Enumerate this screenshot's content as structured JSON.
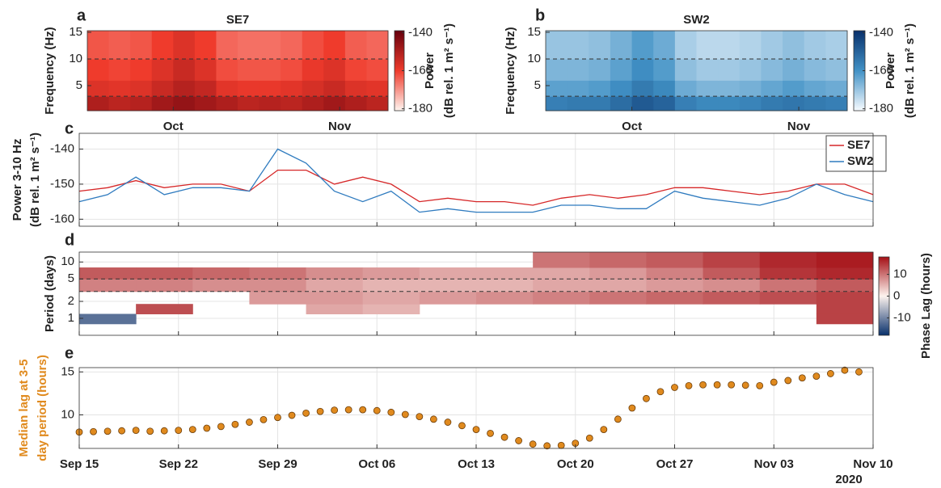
{
  "chart_data": [
    {
      "type": "heatmap",
      "panel_label": "a",
      "title": "SE7",
      "ylabel": "Frequency (Hz)",
      "colorbar_label": [
        "Power",
        "(dB rel. 1 m² s⁻¹)"
      ],
      "xlim": [
        "2020-09-15",
        "2020-11-10"
      ],
      "xticks": [
        {
          "value": "2020-10-01",
          "label": "Oct"
        },
        {
          "value": "2020-11-01",
          "label": "Nov"
        }
      ],
      "ylim": [
        0.3,
        15.3
      ],
      "yticks": [
        5,
        10,
        15
      ],
      "reference_lines": [
        3,
        10
      ],
      "clim": [
        -181,
        -139
      ],
      "cticks": [
        -140,
        -160,
        -180
      ],
      "colormap": [
        "#fff5f0",
        "#ef3b2c",
        "#67000d"
      ],
      "x_edges": [
        "2020-09-15",
        "2020-09-19",
        "2020-09-23",
        "2020-09-27",
        "2020-10-01",
        "2020-10-05",
        "2020-10-09",
        "2020-10-13",
        "2020-10-17",
        "2020-10-21",
        "2020-10-25",
        "2020-10-29",
        "2020-11-02",
        "2020-11-06",
        "2020-11-10"
      ],
      "y_edges": [
        0.3,
        3,
        6,
        10,
        15.3
      ],
      "z": [
        [
          -150,
          -152,
          -151,
          -148,
          -146,
          -148,
          -150,
          -152,
          -151,
          -152,
          -150,
          -148,
          -150,
          -152
        ],
        [
          -157,
          -158,
          -157,
          -154,
          -151,
          -153,
          -158,
          -159,
          -159,
          -158,
          -156,
          -154,
          -157,
          -158
        ],
        [
          -160,
          -161,
          -160,
          -157,
          -154,
          -157,
          -162,
          -163,
          -163,
          -162,
          -159,
          -157,
          -161,
          -162
        ],
        [
          -163,
          -164,
          -163,
          -160,
          -157,
          -160,
          -165,
          -166,
          -166,
          -165,
          -162,
          -160,
          -164,
          -165
        ]
      ]
    },
    {
      "type": "heatmap",
      "panel_label": "b",
      "title": "SW2",
      "ylabel": "Frequency (Hz)",
      "colorbar_label": [
        "Power",
        "(dB rel. 1 m² s⁻¹)"
      ],
      "xlim": [
        "2020-09-15",
        "2020-11-10"
      ],
      "xticks": [
        {
          "value": "2020-10-01",
          "label": "Oct"
        },
        {
          "value": "2020-11-01",
          "label": "Nov"
        }
      ],
      "ylim": [
        0.3,
        15.3
      ],
      "yticks": [
        5,
        10,
        15
      ],
      "reference_lines": [
        3,
        10
      ],
      "clim": [
        -181,
        -139
      ],
      "cticks": [
        -140,
        -160,
        -180
      ],
      "colormap": [
        "#f7fbff",
        "#4292c6",
        "#08306b"
      ],
      "x_edges": [
        "2020-09-15",
        "2020-09-19",
        "2020-09-23",
        "2020-09-27",
        "2020-10-01",
        "2020-10-05",
        "2020-10-09",
        "2020-10-13",
        "2020-10-17",
        "2020-10-21",
        "2020-10-25",
        "2020-10-29",
        "2020-11-02",
        "2020-11-06",
        "2020-11-10"
      ],
      "y_edges": [
        0.3,
        3,
        6,
        10,
        15.3
      ],
      "z": [
        [
          -156,
          -155,
          -155,
          -152,
          -148,
          -150,
          -156,
          -158,
          -158,
          -157,
          -155,
          -154,
          -155,
          -156
        ],
        [
          -163,
          -163,
          -162,
          -159,
          -155,
          -158,
          -165,
          -167,
          -167,
          -166,
          -164,
          -162,
          -164,
          -165
        ],
        [
          -167,
          -167,
          -166,
          -163,
          -159,
          -162,
          -169,
          -171,
          -171,
          -170,
          -168,
          -166,
          -168,
          -169
        ],
        [
          -170,
          -170,
          -169,
          -166,
          -162,
          -165,
          -172,
          -174,
          -174,
          -173,
          -171,
          -169,
          -171,
          -172
        ]
      ]
    },
    {
      "type": "line",
      "panel_label": "c",
      "ylabel": [
        "Power 3-10 Hz",
        "(dB rel. 1 m² s⁻¹)"
      ],
      "xlim": [
        "2020-09-15",
        "2020-11-10"
      ],
      "ylim": [
        -162,
        -135.5
      ],
      "yticks": [
        -140,
        -150,
        -160
      ],
      "grid": true,
      "legend": "upper right",
      "x": [
        "2020-09-15",
        "2020-09-17",
        "2020-09-19",
        "2020-09-21",
        "2020-09-23",
        "2020-09-25",
        "2020-09-27",
        "2020-09-29",
        "2020-10-01",
        "2020-10-03",
        "2020-10-05",
        "2020-10-07",
        "2020-10-09",
        "2020-10-11",
        "2020-10-13",
        "2020-10-15",
        "2020-10-17",
        "2020-10-19",
        "2020-10-21",
        "2020-10-23",
        "2020-10-25",
        "2020-10-27",
        "2020-10-29",
        "2020-10-31",
        "2020-11-02",
        "2020-11-04",
        "2020-11-06",
        "2020-11-08",
        "2020-11-10"
      ],
      "series": [
        {
          "name": "SE7",
          "color": "#d62728",
          "values": [
            -152,
            -151,
            -149,
            -151,
            -150,
            -150,
            -152,
            -146,
            -146,
            -150,
            -148,
            -150,
            -155,
            -154,
            -155,
            -155,
            -156,
            -154,
            -153,
            -154,
            -153,
            -151,
            -151,
            -152,
            -153,
            -152,
            -150,
            -150,
            -153
          ]
        },
        {
          "name": "SW2",
          "color": "#2f7bbf",
          "values": [
            -155,
            -153,
            -148,
            -153,
            -151,
            -151,
            -152,
            -140,
            -144,
            -152,
            -155,
            -152,
            -158,
            -157,
            -158,
            -158,
            -158,
            -156,
            -156,
            -157,
            -157,
            -152,
            -154,
            -155,
            -156,
            -154,
            -150,
            -153,
            -155
          ]
        }
      ]
    },
    {
      "type": "heatmap",
      "panel_label": "d",
      "ylabel": "Period (days)",
      "colorbar_label": [
        "Phase Lag (hours)"
      ],
      "yscale": "log",
      "grid": true,
      "xlim": [
        "2020-09-15",
        "2020-11-10"
      ],
      "ylim": [
        0.5,
        15
      ],
      "yticks": [
        1,
        2,
        5,
        10
      ],
      "reference_lines": [
        3,
        5
      ],
      "clim": [
        -18,
        18
      ],
      "cticks": [
        10,
        0,
        -10
      ],
      "colormap": [
        "#08306b",
        "#fdf3ee",
        "#a50f15"
      ],
      "x_edges": [
        "2020-09-15",
        "2020-09-19",
        "2020-09-23",
        "2020-09-27",
        "2020-10-01",
        "2020-10-05",
        "2020-10-09",
        "2020-10-13",
        "2020-10-17",
        "2020-10-21",
        "2020-10-25",
        "2020-10-29",
        "2020-11-02",
        "2020-11-06",
        "2020-11-10"
      ],
      "y_edges": [
        0.5,
        0.8,
        1.2,
        1.8,
        3,
        5,
        8,
        15
      ],
      "z": [
        [
          null,
          null,
          null,
          null,
          null,
          null,
          null,
          null,
          null,
          null,
          null,
          null,
          null,
          null
        ],
        [
          -12,
          null,
          null,
          null,
          null,
          null,
          null,
          null,
          null,
          null,
          null,
          null,
          null,
          14
        ],
        [
          null,
          13,
          null,
          null,
          6,
          5,
          null,
          null,
          null,
          null,
          null,
          null,
          null,
          14
        ],
        [
          null,
          null,
          null,
          7,
          7,
          6,
          7,
          8,
          9,
          10,
          11,
          12,
          13,
          14
        ],
        [
          9,
          9,
          8,
          8,
          6,
          5,
          5,
          5,
          6,
          6,
          7,
          8,
          10,
          12
        ],
        [
          12,
          12,
          11,
          10,
          8,
          7,
          6,
          6,
          6,
          7,
          9,
          12,
          15,
          16
        ],
        [
          null,
          null,
          null,
          null,
          null,
          null,
          null,
          null,
          10,
          11,
          12,
          14,
          16,
          17
        ]
      ]
    },
    {
      "type": "scatter",
      "panel_label": "e",
      "ylabel": [
        "Median lag at 3-5",
        "day period (hours)"
      ],
      "color": "#e08a1e",
      "year_label": "2020",
      "grid": true,
      "xlim": [
        "2020-09-15",
        "2020-11-10"
      ],
      "ylim": [
        6.1,
        15.5
      ],
      "yticks": [
        10,
        15
      ],
      "xticks": [
        {
          "value": "2020-09-15",
          "label": "Sep 15"
        },
        {
          "value": "2020-09-22",
          "label": "Sep 22"
        },
        {
          "value": "2020-09-29",
          "label": "Sep 29"
        },
        {
          "value": "2020-10-06",
          "label": "Oct 06"
        },
        {
          "value": "2020-10-13",
          "label": "Oct 13"
        },
        {
          "value": "2020-10-20",
          "label": "Oct 20"
        },
        {
          "value": "2020-10-27",
          "label": "Oct 27"
        },
        {
          "value": "2020-11-03",
          "label": "Nov 03"
        },
        {
          "value": "2020-11-10",
          "label": "Nov 10"
        }
      ],
      "x": [
        "2020-09-15",
        "2020-09-16",
        "2020-09-17",
        "2020-09-18",
        "2020-09-19",
        "2020-09-20",
        "2020-09-21",
        "2020-09-22",
        "2020-09-23",
        "2020-09-24",
        "2020-09-25",
        "2020-09-26",
        "2020-09-27",
        "2020-09-28",
        "2020-09-29",
        "2020-09-30",
        "2020-10-01",
        "2020-10-02",
        "2020-10-03",
        "2020-10-04",
        "2020-10-05",
        "2020-10-06",
        "2020-10-07",
        "2020-10-08",
        "2020-10-09",
        "2020-10-10",
        "2020-10-11",
        "2020-10-12",
        "2020-10-13",
        "2020-10-14",
        "2020-10-15",
        "2020-10-16",
        "2020-10-17",
        "2020-10-18",
        "2020-10-19",
        "2020-10-20",
        "2020-10-21",
        "2020-10-22",
        "2020-10-23",
        "2020-10-24",
        "2020-10-25",
        "2020-10-26",
        "2020-10-27",
        "2020-10-28",
        "2020-10-29",
        "2020-10-30",
        "2020-10-31",
        "2020-11-01",
        "2020-11-02",
        "2020-11-03",
        "2020-11-04",
        "2020-11-05",
        "2020-11-06",
        "2020-11-07",
        "2020-11-08",
        "2020-11-09"
      ],
      "values": [
        8.0,
        8.05,
        8.1,
        8.15,
        8.2,
        8.1,
        8.15,
        8.2,
        8.3,
        8.45,
        8.65,
        8.9,
        9.15,
        9.45,
        9.7,
        9.95,
        10.2,
        10.4,
        10.55,
        10.6,
        10.6,
        10.5,
        10.3,
        10.05,
        9.8,
        9.5,
        9.15,
        8.75,
        8.3,
        7.85,
        7.4,
        7.0,
        6.6,
        6.4,
        6.45,
        6.7,
        7.3,
        8.3,
        9.5,
        10.8,
        11.9,
        12.7,
        13.2,
        13.4,
        13.5,
        13.5,
        13.5,
        13.45,
        13.4,
        13.8,
        14.0,
        14.3,
        14.5,
        14.8,
        15.2,
        15.0
      ]
    }
  ]
}
